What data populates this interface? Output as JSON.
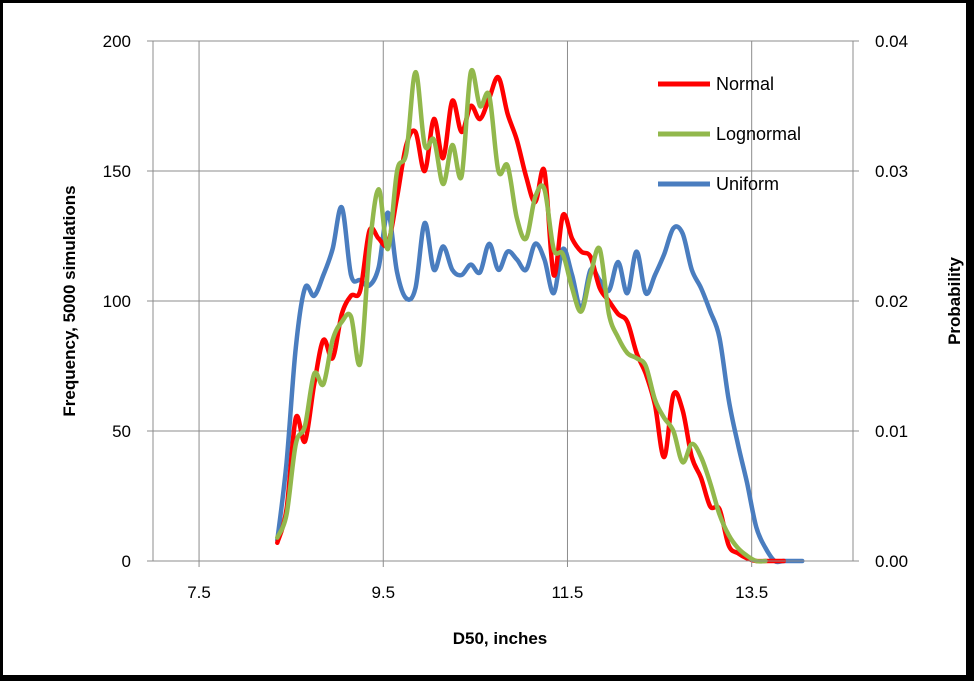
{
  "chart_data": {
    "type": "line",
    "xlabel": "D50, inches",
    "ylabel": "Frequency, 5000 simulations",
    "y2label": "Probability",
    "xlim": [
      7.0,
      14.6
    ],
    "ylim": [
      0,
      200
    ],
    "y2lim": [
      0,
      0.04
    ],
    "x_ticks": [
      "7.5",
      "9.5",
      "11.5",
      "13.5"
    ],
    "x_tick_values": [
      7.5,
      9.5,
      11.5,
      13.5
    ],
    "y_ticks": [
      "0",
      "50",
      "100",
      "150",
      "200"
    ],
    "y_tick_values": [
      0,
      50,
      100,
      150,
      200
    ],
    "y2_ticks": [
      "0.00",
      "0.01",
      "0.02",
      "0.03",
      "0.04"
    ],
    "y2_tick_values": [
      0,
      0.01,
      0.02,
      0.03,
      0.04
    ],
    "grid": true,
    "legend_position": "top-right",
    "series": [
      {
        "name": "Normal",
        "color": "#ff0000",
        "x": [
          8.35,
          8.45,
          8.55,
          8.65,
          8.75,
          8.85,
          8.95,
          9.05,
          9.15,
          9.25,
          9.35,
          9.45,
          9.55,
          9.65,
          9.75,
          9.85,
          9.95,
          10.05,
          10.15,
          10.25,
          10.35,
          10.45,
          10.55,
          10.65,
          10.75,
          10.85,
          10.95,
          11.05,
          11.15,
          11.25,
          11.35,
          11.45,
          11.55,
          11.65,
          11.75,
          11.85,
          11.95,
          12.05,
          12.15,
          12.25,
          12.35,
          12.45,
          12.55,
          12.65,
          12.75,
          12.85,
          12.95,
          13.05,
          13.15,
          13.25,
          13.35,
          13.45,
          13.55,
          13.65,
          13.75,
          13.85
        ],
        "values": [
          7,
          20,
          55,
          46,
          68,
          85,
          78,
          95,
          102,
          104,
          127,
          124,
          122,
          140,
          160,
          165,
          150,
          170,
          155,
          177,
          165,
          175,
          170,
          178,
          186,
          172,
          162,
          148,
          138,
          150,
          110,
          133,
          124,
          119,
          117,
          105,
          100,
          95,
          92,
          80,
          72,
          60,
          40,
          64,
          58,
          40,
          32,
          21,
          20,
          6,
          3,
          1,
          0,
          0,
          0,
          0
        ]
      },
      {
        "name": "Lognormal",
        "color": "#92b84c",
        "x": [
          8.35,
          8.45,
          8.55,
          8.65,
          8.75,
          8.85,
          8.95,
          9.05,
          9.15,
          9.25,
          9.35,
          9.45,
          9.55,
          9.65,
          9.75,
          9.85,
          9.95,
          10.05,
          10.15,
          10.25,
          10.35,
          10.45,
          10.55,
          10.65,
          10.75,
          10.85,
          10.95,
          11.05,
          11.15,
          11.25,
          11.35,
          11.45,
          11.55,
          11.65,
          11.75,
          11.85,
          11.95,
          12.05,
          12.15,
          12.25,
          12.35,
          12.45,
          12.55,
          12.65,
          12.75,
          12.85,
          12.95,
          13.05,
          13.15,
          13.25,
          13.35,
          13.45,
          13.55,
          13.65
        ],
        "values": [
          9,
          18,
          45,
          52,
          72,
          68,
          85,
          92,
          94,
          76,
          120,
          143,
          120,
          150,
          157,
          188,
          160,
          162,
          145,
          160,
          148,
          188,
          175,
          179,
          150,
          152,
          132,
          124,
          140,
          143,
          120,
          118,
          105,
          96,
          110,
          120,
          95,
          86,
          80,
          78,
          75,
          62,
          55,
          50,
          38,
          45,
          40,
          30,
          18,
          10,
          5,
          2,
          0,
          0
        ]
      },
      {
        "name": "Uniform",
        "color": "#4a7dbf",
        "x": [
          8.35,
          8.45,
          8.55,
          8.65,
          8.75,
          8.85,
          8.95,
          9.05,
          9.15,
          9.25,
          9.35,
          9.45,
          9.55,
          9.65,
          9.75,
          9.85,
          9.95,
          10.05,
          10.15,
          10.25,
          10.35,
          10.45,
          10.55,
          10.65,
          10.75,
          10.85,
          10.95,
          11.05,
          11.15,
          11.25,
          11.35,
          11.45,
          11.55,
          11.65,
          11.75,
          11.85,
          11.95,
          12.05,
          12.15,
          12.25,
          12.35,
          12.45,
          12.55,
          12.65,
          12.75,
          12.85,
          12.95,
          13.05,
          13.15,
          13.25,
          13.35,
          13.45,
          13.55,
          13.65,
          13.75,
          13.85,
          13.95,
          14.05
        ],
        "values": [
          8,
          38,
          82,
          105,
          102,
          110,
          120,
          136,
          110,
          108,
          106,
          113,
          134,
          111,
          101,
          105,
          130,
          112,
          121,
          112,
          110,
          114,
          111,
          122,
          112,
          119,
          116,
          112,
          122,
          116,
          103,
          120,
          110,
          97,
          112,
          108,
          104,
          115,
          103,
          119,
          103,
          110,
          118,
          128,
          126,
          112,
          105,
          96,
          86,
          62,
          45,
          30,
          13,
          5,
          0,
          0,
          0,
          0
        ]
      }
    ]
  }
}
